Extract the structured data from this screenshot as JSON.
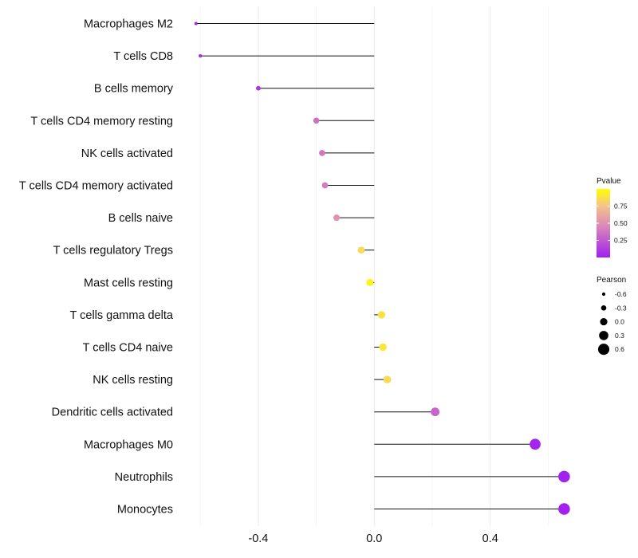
{
  "chart_data": {
    "type": "lollipop",
    "categories": [
      "Macrophages M2",
      "T cells CD8",
      "B cells memory",
      "T cells CD4 memory resting",
      "NK cells activated",
      "T cells CD4 memory activated",
      "B cells naive",
      "T cells regulatory  Tregs ",
      "Mast cells resting",
      "T cells gamma delta",
      "T cells CD4 naive",
      "NK cells resting",
      "Dendritic cells activated",
      "Macrophages M0",
      "Neutrophils",
      "Monocytes"
    ],
    "pearson": [
      -0.615,
      -0.6,
      -0.4,
      -0.2,
      -0.18,
      -0.17,
      -0.13,
      -0.045,
      -0.015,
      0.025,
      0.03,
      0.045,
      0.21,
      0.555,
      0.655,
      0.655
    ],
    "pvalue": [
      0.02,
      0.02,
      0.1,
      0.35,
      0.38,
      0.4,
      0.5,
      0.85,
      0.95,
      0.88,
      0.9,
      0.85,
      0.3,
      0.02,
      0.01,
      0.01
    ],
    "xaxis": {
      "min": -0.66,
      "max": 0.73,
      "ticks": [
        -0.4,
        0.0,
        0.4
      ],
      "tick_labels": [
        "-0.4",
        "0.0",
        "0.4"
      ]
    },
    "legend_pvalue": {
      "title": "Pvalue",
      "ticks": [
        0.25,
        0.5,
        0.75
      ],
      "tick_labels": [
        "0.25",
        "0.50",
        "0.75"
      ],
      "low_color": "#a020f0",
      "mid_color": "#d987b8",
      "high_color": "#ffff00"
    },
    "legend_pearson": {
      "title": "Pearson",
      "values": [
        -0.6,
        -0.3,
        0.0,
        0.3,
        0.6
      ],
      "labels": [
        "-0.6",
        "-0.3",
        "0.0",
        "0.3",
        "0.6"
      ]
    },
    "grid": true,
    "background": "#ffffff"
  }
}
